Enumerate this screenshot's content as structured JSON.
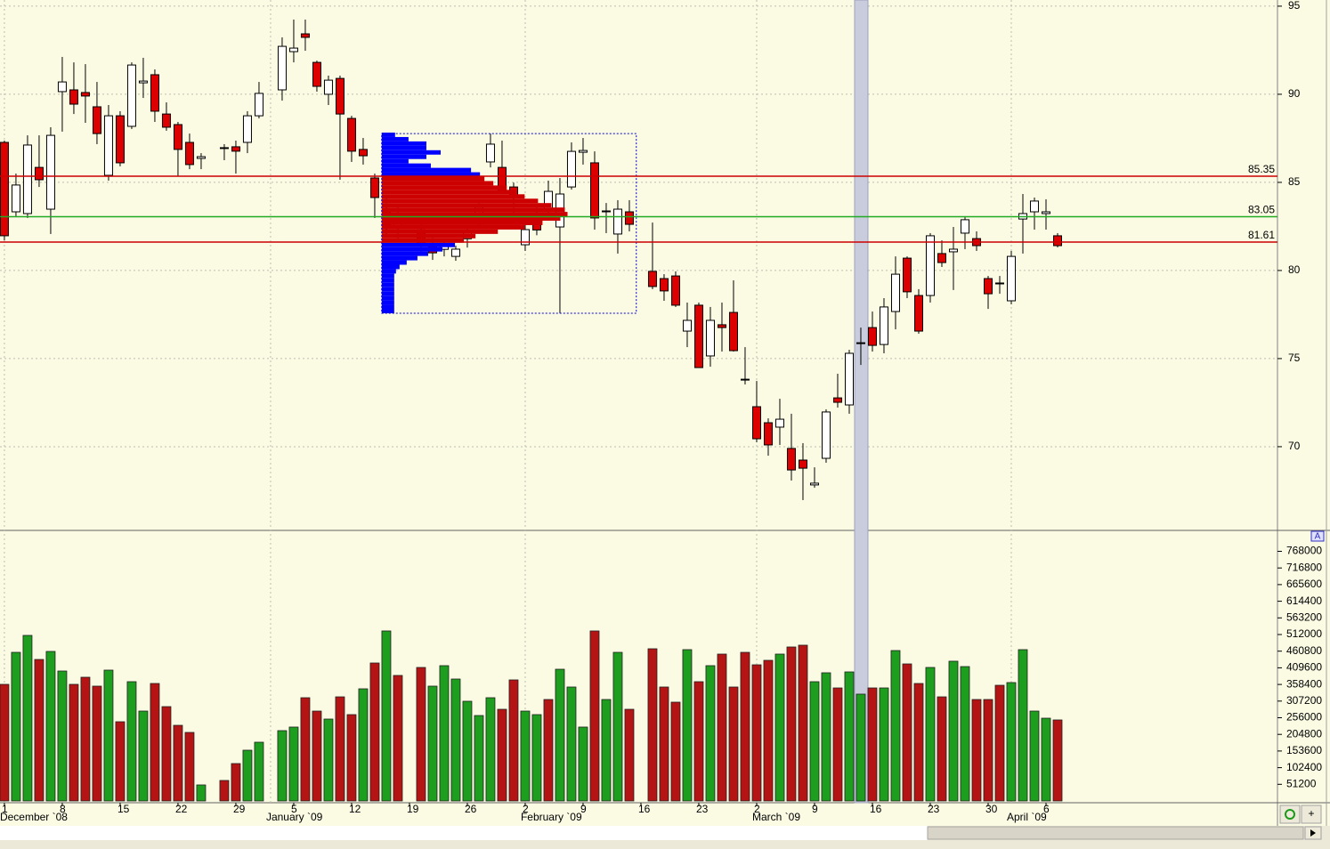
{
  "chart_data": [
    {
      "type": "candlestick",
      "open": [
        87.27,
        83.33,
        83.23,
        85.85,
        83.48,
        90.15,
        90.25,
        90.1,
        89.29,
        85.4,
        88.78,
        88.18,
        90.65,
        91.11,
        88.88,
        88.28,
        87.27,
        86.36,
        null,
        86.92,
        87.02,
        87.27,
        88.78,
        null,
        90.25,
        92.42,
        93.43,
        91.81,
        90.0,
        90.9,
        88.63,
        86.87,
        85.25,
        83.5,
        82.5,
        null,
        82.3,
        81.5,
        81.2,
        80.8,
        81.8,
        83.0,
        86.16,
        85.85,
        84.74,
        81.46,
        83.2,
        83.48,
        82.47,
        84.74,
        86.71,
        86.11,
        83.33,
        82.07,
        83.33,
        null,
        79.95,
        79.54,
        79.69,
        76.56,
        78.03,
        75.15,
        76.92,
        77.62,
        73.83,
        72.27,
        71.36,
        71.11,
        69.9,
        69.24,
        67.83,
        69.34,
        72.77,
        72.37,
        75.85,
        76.76,
        75.8,
        77.67,
        80.7,
        78.58,
        78.58,
        80.96,
        81.06,
        82.12,
        81.81,
        79.54,
        79.24,
        78.28,
        82.92,
        83.33,
        83.23,
        81.97
      ],
      "high": [
        87.37,
        85.5,
        87.67,
        87.67,
        88.13,
        92.12,
        91.81,
        91.71,
        90.7,
        89.39,
        89.04,
        91.81,
        92.07,
        91.41,
        89.54,
        88.43,
        87.77,
        86.66,
        null,
        87.17,
        87.37,
        89.04,
        90.7,
        null,
        93.23,
        94.24,
        94.24,
        91.91,
        91.06,
        91.06,
        88.78,
        87.52,
        85.5,
        84.2,
        83.6,
        null,
        82.8,
        81.9,
        81.8,
        81.41,
        82.4,
        84.0,
        87.77,
        87.37,
        84.99,
        82.98,
        83.6,
        85.1,
        85.25,
        87.27,
        87.52,
        86.76,
        83.83,
        83.99,
        83.99,
        null,
        82.72,
        79.79,
        79.95,
        78.18,
        78.18,
        77.93,
        78.18,
        79.44,
        75.65,
        73.73,
        71.61,
        72.72,
        71.87,
        70.2,
        68.83,
        72.12,
        74.14,
        75.5,
        76.76,
        77.67,
        78.43,
        80.8,
        80.8,
        78.94,
        82.12,
        81.71,
        82.47,
        83.08,
        82.22,
        79.69,
        79.69,
        81.11,
        84.34,
        84.14,
        84.04,
        82.12
      ],
      "low": [
        81.71,
        83.08,
        82.98,
        84.74,
        82.07,
        87.88,
        88.88,
        88.38,
        87.17,
        85.1,
        85.91,
        88.03,
        89.79,
        88.43,
        87.93,
        85.35,
        85.75,
        85.75,
        null,
        86.26,
        85.5,
        86.66,
        88.63,
        null,
        89.64,
        91.81,
        92.47,
        90.15,
        89.39,
        85.15,
        86.16,
        86.01,
        82.98,
        81.9,
        81.8,
        null,
        81.0,
        80.6,
        80.8,
        80.55,
        81.3,
        82.5,
        85.85,
        84.34,
        83.23,
        81.11,
        82.0,
        82.98,
        77.57,
        84.59,
        86.01,
        82.32,
        82.12,
        80.96,
        82.22,
        null,
        78.94,
        78.28,
        77.93,
        75.65,
        74.49,
        74.54,
        75.4,
        75.4,
        73.53,
        70.25,
        69.49,
        70.1,
        68.08,
        66.97,
        67.67,
        69.09,
        72.22,
        71.87,
        74.64,
        75.4,
        75.3,
        76.66,
        78.43,
        76.41,
        78.18,
        80.2,
        78.89,
        81.21,
        81.11,
        77.82,
        78.68,
        78.08,
        80.96,
        82.32,
        82.32,
        81.31
      ],
      "close": [
        81.97,
        84.85,
        87.12,
        85.15,
        87.67,
        90.7,
        89.44,
        89.9,
        87.77,
        88.78,
        86.11,
        91.66,
        90.75,
        89.04,
        88.13,
        86.87,
        86.01,
        86.46,
        null,
        86.97,
        86.77,
        88.78,
        90.05,
        null,
        92.72,
        92.62,
        93.23,
        90.45,
        90.8,
        88.88,
        86.77,
        86.51,
        84.14,
        82.5,
        83.0,
        null,
        81.5,
        81.0,
        81.4,
        81.21,
        82.2,
        83.6,
        87.17,
        84.49,
        84.14,
        82.32,
        82.3,
        84.49,
        84.34,
        86.76,
        86.81,
        82.98,
        83.38,
        83.48,
        82.62,
        null,
        79.09,
        78.84,
        78.03,
        77.17,
        74.49,
        77.17,
        76.76,
        75.45,
        73.78,
        70.45,
        70.1,
        71.56,
        68.68,
        68.78,
        67.93,
        71.97,
        72.52,
        75.3,
        75.9,
        75.75,
        77.93,
        79.79,
        78.79,
        76.56,
        81.97,
        80.45,
        81.21,
        82.88,
        81.41,
        78.68,
        79.29,
        80.8,
        83.23,
        83.94,
        83.33,
        81.41
      ],
      "up_color": "#ffffff",
      "down_color": "#dd0000",
      "xlim": [
        -0.38,
        110
      ],
      "ylim": [
        65.3,
        95.35
      ],
      "yticks": [
        70,
        75,
        80,
        85,
        90,
        95
      ],
      "grid": true,
      "hlines": [
        {
          "value": 85.35,
          "color": "#cc0000"
        },
        {
          "value": 83.05,
          "color": "#22aa22"
        },
        {
          "value": 81.61,
          "color": "#cc0000"
        }
      ],
      "highlight": 74,
      "volume_profile": {
        "prices": [
          77.7,
          77.95,
          78.2,
          78.45,
          78.7,
          78.95,
          79.2,
          79.45,
          79.7,
          79.95,
          80.2,
          80.45,
          80.7,
          80.95,
          81.2,
          81.45,
          81.7,
          81.95,
          82.2,
          82.45,
          82.7,
          82.95,
          83.2,
          83.45,
          83.7,
          83.95,
          84.2,
          84.45,
          84.7,
          84.95,
          85.2,
          85.45,
          85.7,
          85.95,
          86.2,
          86.45,
          86.7,
          86.95,
          87.2,
          87.45,
          87.7
        ],
        "values": [
          14,
          14,
          14,
          14,
          14,
          14,
          14,
          14,
          14,
          16,
          20,
          28,
          40,
          52,
          68,
          82,
          92,
          105,
          130,
          160,
          180,
          200,
          208,
          205,
          190,
          175,
          160,
          150,
          140,
          125,
          115,
          110,
          100,
          55,
          30,
          50,
          66,
          50,
          50,
          30,
          15
        ],
        "xlim": [
          0,
          285
        ],
        "box_x": [
          32.6,
          54.6
        ],
        "box_y": [
          77.57,
          87.77
        ],
        "color": "#0000ff",
        "value_area_color": "#cc0000"
      }
    },
    {
      "type": "bar",
      "values": [
        358700,
        457200,
        509300,
        435300,
        460000,
        399700,
        358700,
        380600,
        353200,
        402500,
        243700,
        366900,
        276500,
        361400,
        290200,
        232700,
        210800,
        49300,
        null,
        63000,
        115000,
        156100,
        180700,
        null,
        216300,
        227300,
        317600,
        276500,
        251900,
        320300,
        265600,
        345000,
        424400,
        523000,
        386100,
        null,
        410700,
        353200,
        416200,
        375100,
        306700,
        262800,
        317600,
        282000,
        372400,
        276500,
        265600,
        312100,
        405200,
        350500,
        227300,
        523000,
        312100,
        457200,
        282000,
        null,
        468200,
        350500,
        303900,
        465500,
        366900,
        416200,
        451800,
        350500,
        457200,
        418900,
        432600,
        451800,
        473700,
        479200,
        366900,
        394300,
        347700,
        397000,
        328600,
        347700,
        347700,
        462700,
        421600,
        361400,
        410700,
        320300,
        429900,
        413400,
        312100,
        312100,
        355900,
        364200,
        465500,
        276500,
        254600,
        249200
      ],
      "colors": [
        "#b41414",
        "#1e9e1e",
        "#1e9e1e",
        "#b41414",
        "#1e9e1e",
        "#1e9e1e",
        "#b41414",
        "#b41414",
        "#b41414",
        "#1e9e1e",
        "#b41414",
        "#1e9e1e",
        "#1e9e1e",
        "#b41414",
        "#b41414",
        "#b41414",
        "#b41414",
        "#1e9e1e",
        null,
        "#b41414",
        "#b41414",
        "#1e9e1e",
        "#1e9e1e",
        null,
        "#1e9e1e",
        "#1e9e1e",
        "#b41414",
        "#b41414",
        "#1e9e1e",
        "#b41414",
        "#b41414",
        "#1e9e1e",
        "#b41414",
        "#1e9e1e",
        "#b41414",
        null,
        "#b41414",
        "#1e9e1e",
        "#1e9e1e",
        "#1e9e1e",
        "#1e9e1e",
        "#1e9e1e",
        "#1e9e1e",
        "#b41414",
        "#b41414",
        "#1e9e1e",
        "#1e9e1e",
        "#b41414",
        "#1e9e1e",
        "#1e9e1e",
        "#1e9e1e",
        "#b41414",
        "#1e9e1e",
        "#1e9e1e",
        "#b41414",
        null,
        "#b41414",
        "#b41414",
        "#b41414",
        "#1e9e1e",
        "#b41414",
        "#1e9e1e",
        "#b41414",
        "#b41414",
        "#b41414",
        "#b41414",
        "#b41414",
        "#1e9e1e",
        "#b41414",
        "#b41414",
        "#1e9e1e",
        "#1e9e1e",
        "#b41414",
        "#1e9e1e",
        "#1e9e1e",
        "#b41414",
        "#1e9e1e",
        "#1e9e1e",
        "#b41414",
        "#b41414",
        "#1e9e1e",
        "#b41414",
        "#1e9e1e",
        "#1e9e1e",
        "#b41414",
        "#b41414",
        "#b41414",
        "#1e9e1e",
        "#1e9e1e",
        "#1e9e1e",
        "#1e9e1e",
        "#b41414"
      ],
      "xlim": [
        -0.38,
        110
      ],
      "ylim": [
        0,
        829600
      ],
      "yticks": [
        51200,
        102400,
        153600,
        204800,
        256000,
        307200,
        358400,
        409600,
        460800,
        512000,
        563200,
        614400,
        665600,
        716800,
        768000
      ],
      "xticks": [
        {
          "value": 0,
          "label": "1"
        },
        {
          "value": 5,
          "label": "8"
        },
        {
          "value": 10,
          "label": "15"
        },
        {
          "value": 15,
          "label": "22"
        },
        {
          "value": 20,
          "label": "29"
        },
        {
          "value": 25,
          "label": "5"
        },
        {
          "value": 30,
          "label": "12"
        },
        {
          "value": 35,
          "label": "19"
        },
        {
          "value": 40,
          "label": "26"
        },
        {
          "value": 45,
          "label": "2"
        },
        {
          "value": 50,
          "label": "9"
        },
        {
          "value": 55,
          "label": "16"
        },
        {
          "value": 60,
          "label": "23"
        },
        {
          "value": 65,
          "label": "2"
        },
        {
          "value": 70,
          "label": "9"
        },
        {
          "value": 75,
          "label": "16"
        },
        {
          "value": 80,
          "label": "23"
        },
        {
          "value": 85,
          "label": "30"
        },
        {
          "value": 90,
          "label": "6"
        }
      ],
      "month_labels": [
        {
          "value": 0,
          "label": "December `08"
        },
        {
          "value": 23,
          "label": "January `09"
        },
        {
          "value": 45,
          "label": "February `09"
        },
        {
          "value": 65,
          "label": "March `09"
        },
        {
          "value": 87,
          "label": "April `09"
        }
      ]
    }
  ],
  "ui": {
    "panel_tag": "A",
    "zoom_button": "+"
  }
}
